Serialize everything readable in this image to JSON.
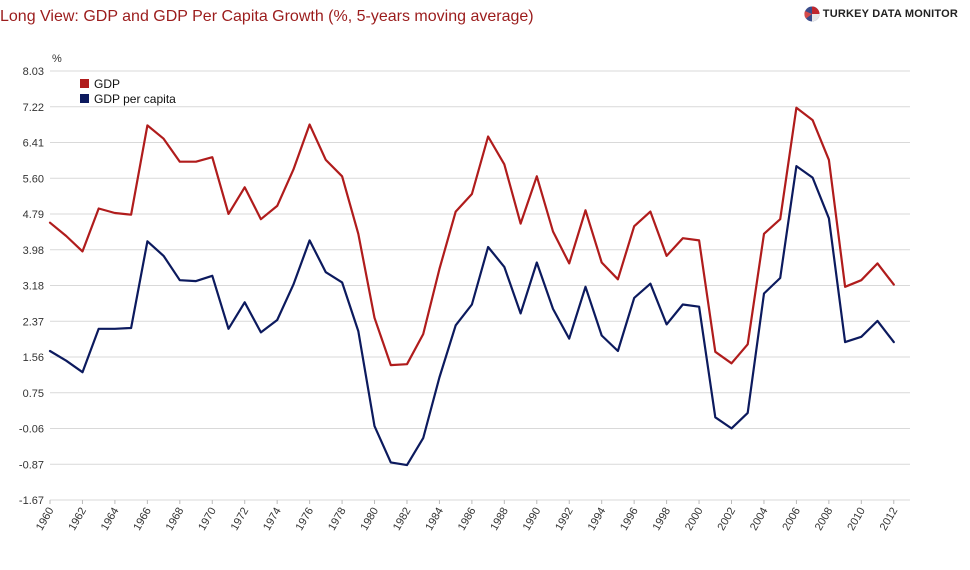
{
  "header": {
    "title": "Long View: GDP and GDP Per Capita Growth (%, 5-years moving average)",
    "brand": "TURKEY DATA MONITOR",
    "logo_icon": "pie-globe-icon"
  },
  "chart_data": {
    "type": "line",
    "title": "Long View: GDP and GDP Per Capita Growth (%, 5-years moving average)",
    "ylabel": "%",
    "xlabel": "",
    "ylim": [
      -1.67,
      8.03
    ],
    "y_ticks": [
      "8.03",
      "7.22",
      "6.41",
      "5.60",
      "4.79",
      "3.98",
      "3.18",
      "2.37",
      "1.56",
      "0.75",
      "-0.06",
      "-0.87",
      "-1.67"
    ],
    "x_ticks": [
      "1960",
      "1962",
      "1964",
      "1966",
      "1968",
      "1970",
      "1972",
      "1974",
      "1976",
      "1978",
      "1980",
      "1982",
      "1984",
      "1986",
      "1988",
      "1990",
      "1992",
      "1994",
      "1996",
      "1998",
      "2000",
      "2002",
      "2004",
      "2006",
      "2008",
      "2010",
      "2012"
    ],
    "grid": true,
    "legend_position": "top-left",
    "x": [
      1960,
      1961,
      1962,
      1963,
      1964,
      1965,
      1966,
      1967,
      1968,
      1969,
      1970,
      1971,
      1972,
      1973,
      1974,
      1975,
      1976,
      1977,
      1978,
      1979,
      1980,
      1981,
      1982,
      1983,
      1984,
      1985,
      1986,
      1987,
      1988,
      1989,
      1990,
      1991,
      1992,
      1993,
      1994,
      1995,
      1996,
      1997,
      1998,
      1999,
      2000,
      2001,
      2002,
      2003,
      2004,
      2005,
      2006,
      2007,
      2008,
      2009,
      2010,
      2011,
      2012
    ],
    "series": [
      {
        "name": "GDP",
        "color": "#b01c1c",
        "values": [
          4.6,
          4.3,
          3.95,
          4.92,
          4.82,
          4.78,
          6.8,
          6.5,
          5.98,
          5.98,
          6.08,
          4.8,
          5.4,
          4.68,
          4.98,
          5.8,
          6.82,
          6.02,
          5.65,
          4.35,
          2.45,
          1.38,
          1.4,
          2.08,
          3.55,
          4.85,
          5.25,
          6.55,
          5.92,
          4.58,
          5.65,
          4.4,
          3.68,
          4.88,
          3.7,
          3.32,
          4.52,
          4.85,
          3.85,
          4.25,
          4.2,
          1.68,
          1.42,
          1.85,
          4.35,
          4.68,
          7.2,
          6.92,
          6.02,
          3.15,
          3.3,
          3.68,
          3.2
        ]
      },
      {
        "name": "GDP per capita",
        "color": "#0c1a5e",
        "values": [
          1.7,
          1.48,
          1.22,
          2.2,
          2.2,
          2.22,
          4.18,
          3.85,
          3.3,
          3.28,
          3.4,
          2.2,
          2.8,
          2.12,
          2.4,
          3.2,
          4.2,
          3.48,
          3.25,
          2.15,
          0.0,
          -0.82,
          -0.88,
          -0.27,
          1.1,
          2.28,
          2.75,
          4.05,
          3.6,
          2.55,
          3.7,
          2.65,
          1.98,
          3.15,
          2.05,
          1.7,
          2.9,
          3.22,
          2.3,
          2.75,
          2.7,
          0.2,
          -0.05,
          0.3,
          3.0,
          3.35,
          5.88,
          5.62,
          4.7,
          1.9,
          2.02,
          2.38,
          1.9
        ]
      }
    ]
  }
}
